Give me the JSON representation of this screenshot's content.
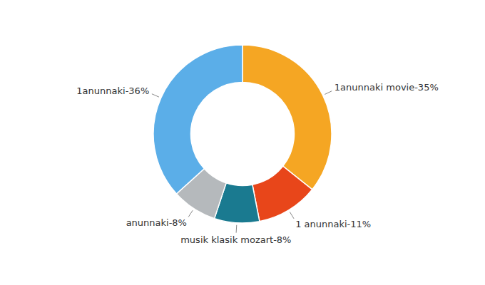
{
  "chart_data": {
    "type": "donut",
    "categories": [
      "1anunnaki movie-35%",
      "1 anunnaki-11%",
      "musik klasik mozart-8%",
      "anunnaki-8%",
      "1anunnaki-36%"
    ],
    "values": [
      35,
      11,
      8,
      8,
      36
    ],
    "colors": [
      "#F5A623",
      "#E8461A",
      "#1A7A90",
      "#B5B9BC",
      "#5BAEE8"
    ]
  }
}
